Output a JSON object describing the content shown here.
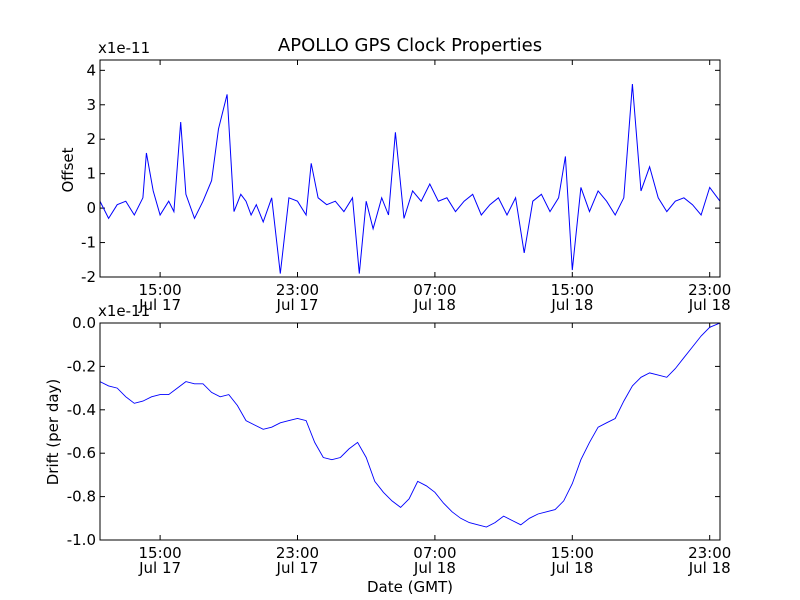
{
  "chart_data": [
    {
      "type": "line",
      "title": "APOLLO GPS Clock Properties",
      "xlabel": "",
      "ylabel": "Offset",
      "y_multiplier_label": "x1e-11",
      "ylim": [
        -2,
        4.3
      ],
      "y_ticks": [
        -2,
        -1,
        0,
        1,
        2,
        3,
        4
      ],
      "y_tick_labels": [
        "-2",
        "-1",
        "0",
        "1",
        "2",
        "3",
        "4"
      ],
      "x_unit": "hours since Jul 17 00:00 GMT",
      "xlim": [
        11.5,
        47.6
      ],
      "x_ticks": [
        15,
        23,
        31,
        39,
        47
      ],
      "x_tick_labels": [
        [
          "15:00",
          "Jul 17"
        ],
        [
          "23:00",
          "Jul 17"
        ],
        [
          "07:00",
          "Jul 18"
        ],
        [
          "15:00",
          "Jul 18"
        ],
        [
          "23:00",
          "Jul 18"
        ]
      ],
      "series": [
        {
          "name": "Offset",
          "color": "#0000ff",
          "x": [
            11.5,
            12.0,
            12.5,
            13.0,
            13.5,
            14.0,
            14.2,
            14.6,
            15.0,
            15.5,
            15.8,
            16.2,
            16.5,
            17.0,
            17.5,
            18.0,
            18.4,
            18.9,
            19.3,
            19.7,
            20.0,
            20.3,
            20.6,
            21.0,
            21.5,
            22.0,
            22.5,
            23.0,
            23.5,
            23.8,
            24.2,
            24.7,
            25.2,
            25.7,
            26.2,
            26.6,
            27.0,
            27.4,
            27.9,
            28.3,
            28.7,
            29.2,
            29.7,
            30.2,
            30.7,
            31.2,
            31.7,
            32.2,
            32.7,
            33.2,
            33.7,
            34.2,
            34.7,
            35.2,
            35.7,
            36.2,
            36.7,
            37.2,
            37.7,
            38.2,
            38.6,
            39.0,
            39.5,
            40.0,
            40.5,
            41.0,
            41.5,
            42.0,
            42.5,
            43.0,
            43.5,
            44.0,
            44.5,
            45.0,
            45.5,
            46.0,
            46.5,
            47.0,
            47.6
          ],
          "values": [
            0.2,
            -0.3,
            0.1,
            0.2,
            -0.2,
            0.3,
            1.6,
            0.5,
            -0.2,
            0.2,
            -0.1,
            2.5,
            0.4,
            -0.3,
            0.2,
            0.8,
            2.3,
            3.3,
            -0.1,
            0.4,
            0.2,
            -0.2,
            0.1,
            -0.4,
            0.3,
            -1.9,
            0.3,
            0.2,
            -0.2,
            1.3,
            0.3,
            0.1,
            0.2,
            -0.1,
            0.3,
            -1.9,
            0.2,
            -0.6,
            0.3,
            -0.2,
            2.2,
            -0.3,
            0.5,
            0.2,
            0.7,
            0.2,
            0.3,
            -0.1,
            0.2,
            0.4,
            -0.2,
            0.1,
            0.3,
            -0.2,
            0.3,
            -1.3,
            0.2,
            0.4,
            -0.1,
            0.3,
            1.5,
            -1.8,
            0.6,
            -0.1,
            0.5,
            0.2,
            -0.2,
            0.3,
            3.6,
            0.5,
            1.2,
            0.3,
            -0.1,
            0.2,
            0.3,
            0.1,
            -0.2,
            0.6,
            0.2
          ]
        }
      ]
    },
    {
      "type": "line",
      "title": "",
      "xlabel": "Date (GMT)",
      "ylabel": "Drift (per day)",
      "y_multiplier_label": "x1e-11",
      "ylim": [
        -1.0,
        0.0
      ],
      "y_ticks": [
        -1.0,
        -0.8,
        -0.6,
        -0.4,
        -0.2,
        0.0
      ],
      "y_tick_labels": [
        "-1.0",
        "-0.8",
        "-0.6",
        "-0.4",
        "-0.2",
        "0.0"
      ],
      "x_unit": "hours since Jul 17 00:00 GMT",
      "xlim": [
        11.5,
        47.6
      ],
      "x_ticks": [
        15,
        23,
        31,
        39,
        47
      ],
      "x_tick_labels": [
        [
          "15:00",
          "Jul 17"
        ],
        [
          "23:00",
          "Jul 17"
        ],
        [
          "07:00",
          "Jul 18"
        ],
        [
          "15:00",
          "Jul 18"
        ],
        [
          "23:00",
          "Jul 18"
        ]
      ],
      "series": [
        {
          "name": "Drift",
          "color": "#0000ff",
          "x": [
            11.5,
            12.0,
            12.5,
            13.0,
            13.5,
            14.0,
            14.5,
            15.0,
            15.5,
            16.0,
            16.5,
            17.0,
            17.5,
            18.0,
            18.5,
            19.0,
            19.5,
            20.0,
            20.5,
            21.0,
            21.5,
            22.0,
            22.5,
            23.0,
            23.5,
            24.0,
            24.5,
            25.0,
            25.5,
            26.0,
            26.5,
            27.0,
            27.5,
            28.0,
            28.5,
            29.0,
            29.5,
            30.0,
            30.5,
            31.0,
            31.5,
            32.0,
            32.5,
            33.0,
            33.5,
            34.0,
            34.5,
            35.0,
            35.5,
            36.0,
            36.5,
            37.0,
            37.5,
            38.0,
            38.5,
            39.0,
            39.5,
            40.0,
            40.5,
            41.0,
            41.5,
            42.0,
            42.5,
            43.0,
            43.5,
            44.0,
            44.5,
            45.0,
            45.5,
            46.0,
            46.5,
            47.0,
            47.6
          ],
          "values": [
            -0.27,
            -0.29,
            -0.3,
            -0.34,
            -0.37,
            -0.36,
            -0.34,
            -0.33,
            -0.33,
            -0.3,
            -0.27,
            -0.28,
            -0.28,
            -0.32,
            -0.34,
            -0.33,
            -0.38,
            -0.45,
            -0.47,
            -0.49,
            -0.48,
            -0.46,
            -0.45,
            -0.44,
            -0.45,
            -0.55,
            -0.62,
            -0.63,
            -0.62,
            -0.58,
            -0.55,
            -0.62,
            -0.73,
            -0.78,
            -0.82,
            -0.85,
            -0.81,
            -0.73,
            -0.75,
            -0.78,
            -0.83,
            -0.87,
            -0.9,
            -0.92,
            -0.93,
            -0.94,
            -0.92,
            -0.89,
            -0.91,
            -0.93,
            -0.9,
            -0.88,
            -0.87,
            -0.86,
            -0.82,
            -0.74,
            -0.63,
            -0.55,
            -0.48,
            -0.46,
            -0.44,
            -0.36,
            -0.29,
            -0.25,
            -0.23,
            -0.24,
            -0.25,
            -0.21,
            -0.16,
            -0.11,
            -0.06,
            -0.02,
            0.0
          ]
        }
      ]
    }
  ]
}
